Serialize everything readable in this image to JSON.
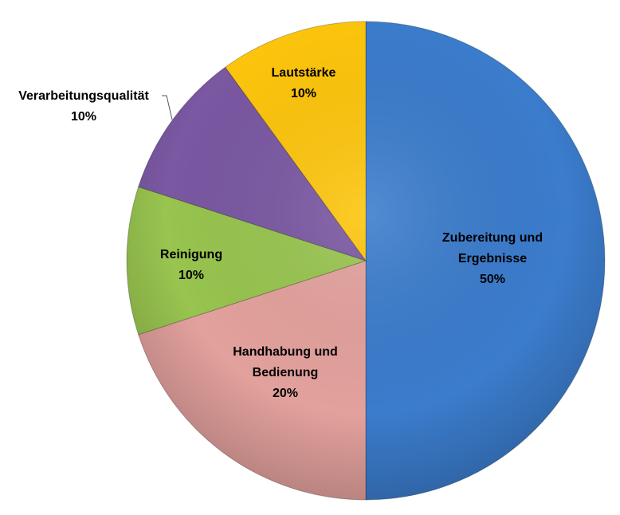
{
  "chart_data": {
    "type": "pie",
    "title": "",
    "start": "top",
    "direction": "clockwise",
    "slices": [
      {
        "label_lines": [
          "Zubereitung  und",
          "Ergebnisse"
        ],
        "percent_label": "50%",
        "value": 50,
        "color": "#3b7ccc"
      },
      {
        "label_lines": [
          "Handhabung  und",
          "Bedienung"
        ],
        "percent_label": "20%",
        "value": 20,
        "color": "#e3a19d"
      },
      {
        "label_lines": [
          "Reinigung"
        ],
        "percent_label": "10%",
        "value": 10,
        "color": "#98c44f"
      },
      {
        "label_lines": [
          "Verarbeitungsqualität"
        ],
        "percent_label": "10%",
        "value": 10,
        "color": "#7a58a2"
      },
      {
        "label_lines": [
          "Lautstärke"
        ],
        "percent_label": "10%",
        "value": 10,
        "color": "#fdc50c"
      }
    ]
  }
}
